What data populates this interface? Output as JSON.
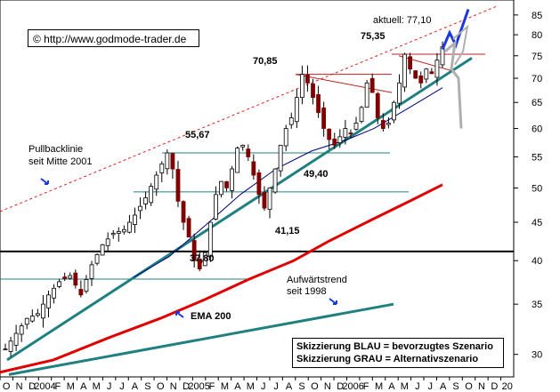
{
  "chart_data": {
    "type": "candlestick",
    "source": "© http://www.godmode-trader.de",
    "current_label": "aktuell: 77,10",
    "y_scale": "log",
    "ylim": [
      28,
      89
    ],
    "y_ticks": [
      "85",
      "80",
      "75",
      "70",
      "65",
      "60",
      "55",
      "50",
      "45",
      "40",
      "35",
      "30"
    ],
    "x_ticks": [
      "O",
      "N",
      "D",
      "2004",
      "F",
      "M",
      "A",
      "M",
      "J",
      "J",
      "A",
      "S",
      "O",
      "N",
      "D",
      "2005",
      "F",
      "M",
      "A",
      "M",
      "J",
      "J",
      "A",
      "S",
      "O",
      "N",
      "D",
      "2006",
      "F",
      "M",
      "A",
      "M",
      "J",
      "J",
      "A",
      "S",
      "O",
      "N",
      "D",
      "20"
    ],
    "levels": [
      {
        "label": "75,35",
        "value": 75.35
      },
      {
        "label": "70,85",
        "value": 70.85
      },
      {
        "label": "55,67",
        "value": 55.67
      },
      {
        "label": "49,40",
        "value": 49.4
      },
      {
        "label": "41,15",
        "value": 41.15
      },
      {
        "label": "37,80",
        "value": 37.8
      }
    ],
    "annotations": {
      "pullback": "Pullbacklinie",
      "pullback_sub": "seit Mitte 2001",
      "trend": "Aufwärtstrend",
      "trend_sub": "seit 1998",
      "ema": "EMA 200"
    },
    "legend": [
      "Skizzierung BLAU = bevorzugtes Szenario",
      "Skizzierung GRAU = Alternativszenario"
    ],
    "price_path": [
      [
        0,
        30.5
      ],
      [
        2,
        32
      ],
      [
        4,
        33.5
      ],
      [
        6,
        34
      ],
      [
        8,
        36
      ],
      [
        10,
        37.5
      ],
      [
        12,
        38.2
      ],
      [
        14,
        36
      ],
      [
        16,
        39.5
      ],
      [
        18,
        42
      ],
      [
        20,
        43.5
      ],
      [
        22,
        44
      ],
      [
        24,
        46
      ],
      [
        26,
        48.5
      ],
      [
        28,
        52
      ],
      [
        30,
        55.67
      ],
      [
        31,
        53
      ],
      [
        32,
        48
      ],
      [
        33,
        45
      ],
      [
        34,
        43
      ],
      [
        35,
        40
      ],
      [
        36,
        39
      ],
      [
        37,
        41
      ],
      [
        38,
        45
      ],
      [
        39,
        49
      ],
      [
        40,
        51
      ],
      [
        41,
        50
      ],
      [
        42,
        53
      ],
      [
        43,
        56.5
      ],
      [
        44,
        57
      ],
      [
        45,
        55
      ],
      [
        46,
        52
      ],
      [
        47,
        49
      ],
      [
        48,
        47
      ],
      [
        49,
        50
      ],
      [
        50,
        53
      ],
      [
        51,
        57
      ],
      [
        52,
        60
      ],
      [
        53,
        62
      ],
      [
        54,
        66
      ],
      [
        55,
        70.85
      ],
      [
        56,
        69
      ],
      [
        57,
        66
      ],
      [
        58,
        63
      ],
      [
        59,
        60
      ],
      [
        60,
        58
      ],
      [
        61,
        57
      ],
      [
        62,
        58.5
      ],
      [
        63,
        60
      ],
      [
        64,
        59
      ],
      [
        65,
        61
      ],
      [
        66,
        64
      ],
      [
        67,
        69
      ],
      [
        68,
        67
      ],
      [
        69,
        62
      ],
      [
        70,
        60
      ],
      [
        71,
        61
      ],
      [
        72,
        65
      ],
      [
        73,
        69
      ],
      [
        74,
        75.35
      ],
      [
        75,
        72
      ],
      [
        76,
        70
      ],
      [
        77,
        69
      ],
      [
        78,
        72
      ],
      [
        79,
        71
      ],
      [
        80,
        74
      ],
      [
        81,
        77.1
      ]
    ]
  }
}
